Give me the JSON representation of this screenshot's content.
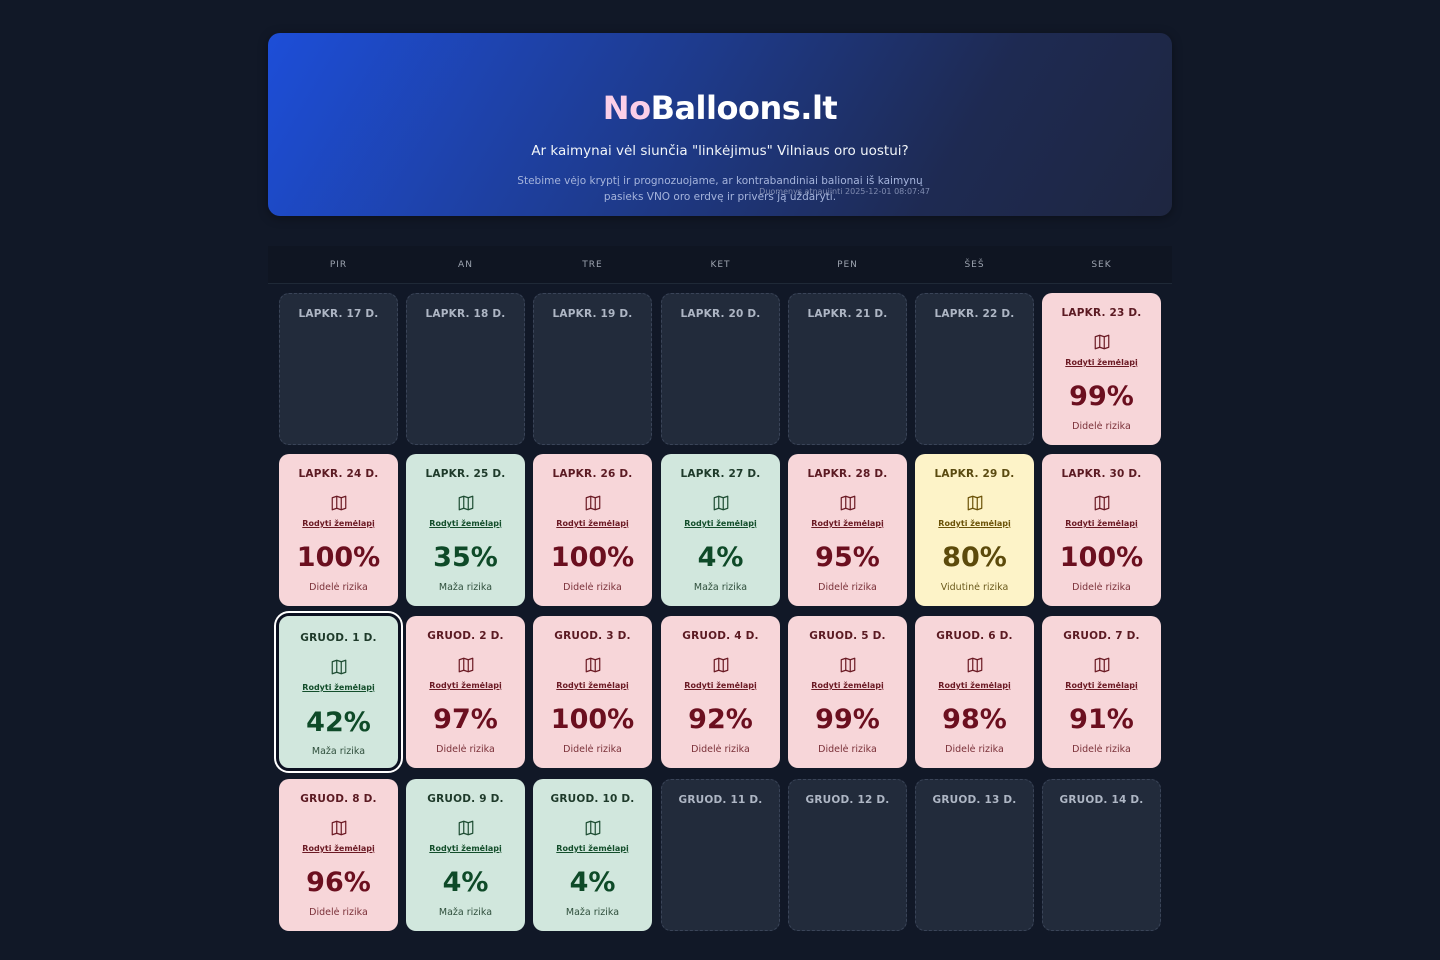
{
  "header": {
    "title_accent": "No",
    "title_rest": "Balloons.lt",
    "subtitle": "Ar kaimynai vėl siunčia \"linkėjimus\" Vilniaus oro uostui?",
    "description": "Stebime vėjo kryptį ir prognozuojame, ar kontrabandiniai balionai iš kaimynų pasieks VNO oro erdvę ir privers ją uždaryti.",
    "updated": "Duomenys atnaujinti 2025-12-01 08:07:47"
  },
  "weekdays": [
    "PIR",
    "AN",
    "TRE",
    "KET",
    "PEN",
    "ŠEŠ",
    "SEK"
  ],
  "colors": {
    "high_bg": "#f7d6d9",
    "low_bg": "#d1e7dd",
    "mid_bg": "#fdf3c8",
    "empty_bg": "#222b3b",
    "page_bg": "#111827"
  },
  "map_link_label": "Rodyti žemėlapį",
  "map_icon": "map-icon",
  "days": [
    {
      "label": "LAPKR. 17 D.",
      "risk": "none"
    },
    {
      "label": "LAPKR. 18 D.",
      "risk": "none"
    },
    {
      "label": "LAPKR. 19 D.",
      "risk": "none"
    },
    {
      "label": "LAPKR. 20 D.",
      "risk": "none"
    },
    {
      "label": "LAPKR. 21 D.",
      "risk": "none"
    },
    {
      "label": "LAPKR. 22 D.",
      "risk": "none"
    },
    {
      "label": "LAPKR. 23 D.",
      "risk": "high",
      "percent": "99%",
      "risk_text": "Didelė rizika"
    },
    {
      "label": "LAPKR. 24 D.",
      "risk": "high",
      "percent": "100%",
      "risk_text": "Didelė rizika"
    },
    {
      "label": "LAPKR. 25 D.",
      "risk": "low",
      "percent": "35%",
      "risk_text": "Maža rizika"
    },
    {
      "label": "LAPKR. 26 D.",
      "risk": "high",
      "percent": "100%",
      "risk_text": "Didelė rizika"
    },
    {
      "label": "LAPKR. 27 D.",
      "risk": "low",
      "percent": "4%",
      "risk_text": "Maža rizika"
    },
    {
      "label": "LAPKR. 28 D.",
      "risk": "high",
      "percent": "95%",
      "risk_text": "Didelė rizika"
    },
    {
      "label": "LAPKR. 29 D.",
      "risk": "mid",
      "percent": "80%",
      "risk_text": "Vidutinė rizika"
    },
    {
      "label": "LAPKR. 30 D.",
      "risk": "high",
      "percent": "100%",
      "risk_text": "Didelė rizika"
    },
    {
      "label": "GRUOD. 1 D.",
      "risk": "low",
      "percent": "42%",
      "risk_text": "Maža rizika",
      "today": true
    },
    {
      "label": "GRUOD. 2 D.",
      "risk": "high",
      "percent": "97%",
      "risk_text": "Didelė rizika"
    },
    {
      "label": "GRUOD. 3 D.",
      "risk": "high",
      "percent": "100%",
      "risk_text": "Didelė rizika"
    },
    {
      "label": "GRUOD. 4 D.",
      "risk": "high",
      "percent": "92%",
      "risk_text": "Didelė rizika"
    },
    {
      "label": "GRUOD. 5 D.",
      "risk": "high",
      "percent": "99%",
      "risk_text": "Didelė rizika"
    },
    {
      "label": "GRUOD. 6 D.",
      "risk": "high",
      "percent": "98%",
      "risk_text": "Didelė rizika"
    },
    {
      "label": "GRUOD. 7 D.",
      "risk": "high",
      "percent": "91%",
      "risk_text": "Didelė rizika"
    },
    {
      "label": "GRUOD. 8 D.",
      "risk": "high",
      "percent": "96%",
      "risk_text": "Didelė rizika"
    },
    {
      "label": "GRUOD. 9 D.",
      "risk": "low",
      "percent": "4%",
      "risk_text": "Maža rizika"
    },
    {
      "label": "GRUOD. 10 D.",
      "risk": "low",
      "percent": "4%",
      "risk_text": "Maža rizika"
    },
    {
      "label": "GRUOD. 11 D.",
      "risk": "none"
    },
    {
      "label": "GRUOD. 12 D.",
      "risk": "none"
    },
    {
      "label": "GRUOD. 13 D.",
      "risk": "none"
    },
    {
      "label": "GRUOD. 14 D.",
      "risk": "none"
    }
  ]
}
